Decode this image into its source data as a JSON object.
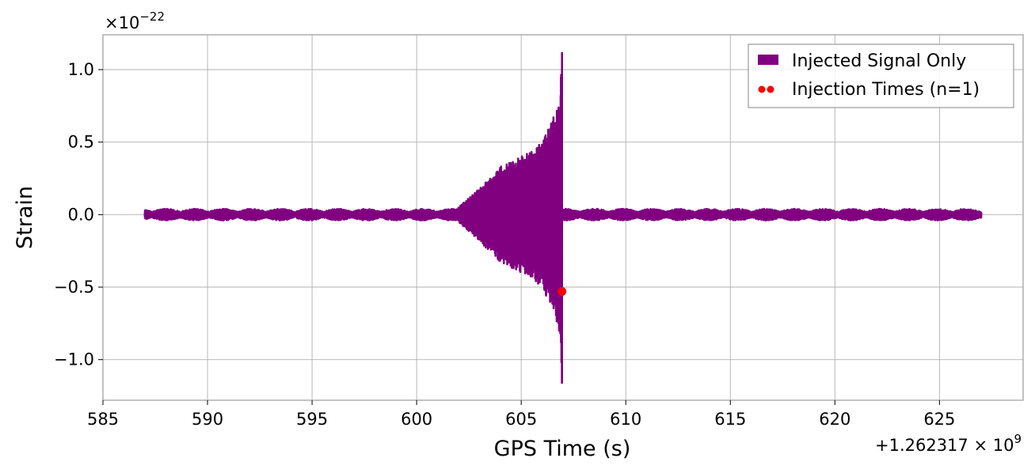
{
  "chart_data": {
    "type": "line",
    "xlabel": "GPS Time (s)",
    "ylabel": "Strain",
    "x_offset_label": "+1.262317",
    "x_offset_exp": "9",
    "y_scale_label": "×10",
    "y_scale_exp": "−22",
    "xlim": [
      585,
      629
    ],
    "ylim": [
      -1.28,
      1.24
    ],
    "x_ticks": [
      585,
      590,
      595,
      600,
      605,
      610,
      615,
      620,
      625
    ],
    "x_tick_labels": [
      "585",
      "590",
      "595",
      "600",
      "605",
      "610",
      "615",
      "620",
      "625"
    ],
    "y_ticks": [
      1.0,
      0.5,
      0.0,
      -0.5,
      -1.0
    ],
    "y_tick_labels": [
      "1.0",
      "0.5",
      "0.0",
      "−0.5",
      "−1.0"
    ],
    "grid": true,
    "legend_position": "top-right",
    "series": [
      {
        "name": "Injected Signal Only",
        "kind": "line",
        "color": "#800080",
        "x_start": 587.0,
        "x_end": 627.0,
        "merger_time": 606.95,
        "noise_amplitude": 0.04,
        "peak_positive": 1.12,
        "peak_negative": -1.16,
        "envelope": [
          {
            "x": 602.0,
            "amp": 0.05
          },
          {
            "x": 603.0,
            "amp": 0.18
          },
          {
            "x": 604.0,
            "amp": 0.33
          },
          {
            "x": 605.0,
            "amp": 0.4
          },
          {
            "x": 606.0,
            "amp": 0.5
          },
          {
            "x": 606.5,
            "amp": 0.65
          },
          {
            "x": 606.8,
            "amp": 0.8
          },
          {
            "x": 606.95,
            "amp": 1.14
          }
        ]
      },
      {
        "name": "Injection Times (n=1)",
        "kind": "scatter",
        "color": "#ff0000",
        "points": [
          {
            "x": 606.95,
            "y": -0.53
          }
        ]
      }
    ]
  }
}
